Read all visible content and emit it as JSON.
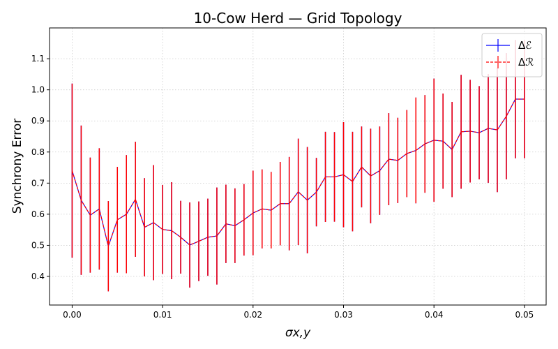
{
  "chart_data": {
    "type": "errorbar_line",
    "title": "10-Cow Herd — Grid Topology",
    "xlabel": "σx,y",
    "ylabel": "Synchrony Error",
    "x": [
      0,
      0.001,
      0.002,
      0.003,
      0.004,
      0.005,
      0.006,
      0.007,
      0.008,
      0.009,
      0.01,
      0.011,
      0.012,
      0.013,
      0.014,
      0.015,
      0.016,
      0.017,
      0.018,
      0.019,
      0.02,
      0.021,
      0.022,
      0.023,
      0.024,
      0.025,
      0.026,
      0.027,
      0.028,
      0.029,
      0.03,
      0.031,
      0.032,
      0.033,
      0.034,
      0.035,
      0.036,
      0.037,
      0.038,
      0.039,
      0.04,
      0.041,
      0.042,
      0.043,
      0.044,
      0.045,
      0.046,
      0.047,
      0.048,
      0.049,
      0.05
    ],
    "series": [
      {
        "name": "Δℰ",
        "color": "#0000ff",
        "linestyle": "solid",
        "values": [
          0.74,
          0.645,
          0.597,
          0.617,
          0.497,
          0.582,
          0.6,
          0.648,
          0.558,
          0.573,
          0.551,
          0.547,
          0.526,
          0.501,
          0.513,
          0.526,
          0.53,
          0.569,
          0.563,
          0.582,
          0.604,
          0.617,
          0.613,
          0.634,
          0.634,
          0.672,
          0.645,
          0.671,
          0.72,
          0.72,
          0.727,
          0.705,
          0.752,
          0.723,
          0.74,
          0.777,
          0.773,
          0.795,
          0.805,
          0.826,
          0.838,
          0.835,
          0.808,
          0.865,
          0.867,
          0.862,
          0.876,
          0.871,
          0.915,
          0.97,
          0.97
        ],
        "errors": [
          0.28,
          0.24,
          0.185,
          0.195,
          0.145,
          0.17,
          0.19,
          0.185,
          0.158,
          0.185,
          0.143,
          0.156,
          0.117,
          0.137,
          0.128,
          0.124,
          0.156,
          0.126,
          0.12,
          0.115,
          0.136,
          0.127,
          0.123,
          0.134,
          0.15,
          0.171,
          0.171,
          0.11,
          0.145,
          0.144,
          0.169,
          0.16,
          0.13,
          0.152,
          0.142,
          0.148,
          0.137,
          0.14,
          0.17,
          0.157,
          0.198,
          0.153,
          0.153,
          0.183,
          0.165,
          0.15,
          0.175,
          0.2,
          0.203,
          0.19,
          0.19
        ]
      },
      {
        "name": "Δℛ",
        "color": "#ff0000",
        "linestyle": "dashed",
        "values": [
          0.74,
          0.645,
          0.597,
          0.617,
          0.497,
          0.582,
          0.6,
          0.648,
          0.558,
          0.573,
          0.551,
          0.547,
          0.526,
          0.501,
          0.513,
          0.526,
          0.53,
          0.569,
          0.563,
          0.582,
          0.604,
          0.617,
          0.613,
          0.634,
          0.634,
          0.672,
          0.645,
          0.671,
          0.72,
          0.72,
          0.727,
          0.705,
          0.752,
          0.723,
          0.74,
          0.777,
          0.773,
          0.795,
          0.805,
          0.826,
          0.838,
          0.835,
          0.808,
          0.865,
          0.867,
          0.862,
          0.876,
          0.871,
          0.915,
          0.97,
          0.97
        ],
        "errors": [
          0.28,
          0.24,
          0.185,
          0.195,
          0.145,
          0.17,
          0.19,
          0.185,
          0.158,
          0.185,
          0.143,
          0.156,
          0.117,
          0.137,
          0.128,
          0.124,
          0.156,
          0.126,
          0.12,
          0.115,
          0.136,
          0.127,
          0.123,
          0.134,
          0.15,
          0.171,
          0.171,
          0.11,
          0.145,
          0.144,
          0.169,
          0.16,
          0.13,
          0.152,
          0.142,
          0.148,
          0.137,
          0.14,
          0.17,
          0.157,
          0.198,
          0.153,
          0.153,
          0.183,
          0.165,
          0.15,
          0.175,
          0.2,
          0.203,
          0.19,
          0.19
        ]
      }
    ],
    "xlim": [
      -0.0025,
      0.0524
    ],
    "ylim": [
      0.308,
      1.199
    ],
    "xticks": [
      {
        "value": 0,
        "label": "0.00"
      },
      0.01,
      {
        "value": 0.02,
        "label": "0.02"
      },
      0.03,
      0.04,
      0.05
    ],
    "yticks": [
      0.4,
      0.5,
      0.6,
      0.7,
      0.8,
      0.9,
      {
        "value": 1,
        "label": "1.0"
      },
      1.1
    ],
    "grid": true,
    "legend": "upper right"
  }
}
